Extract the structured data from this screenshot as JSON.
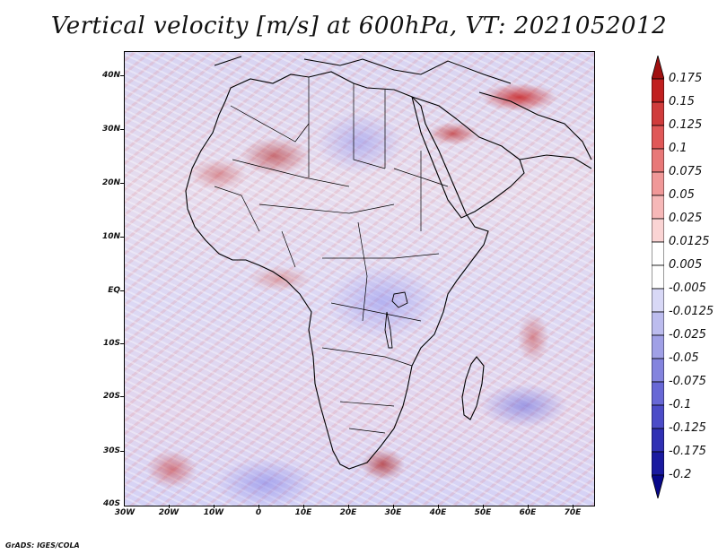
{
  "title": "Vertical velocity [m/s] at 600hPa, VT: 2021052012",
  "credit": "GrADS: IGES/COLA",
  "map": {
    "region": "Africa and Arabian Peninsula",
    "lat_labels": [
      "40N",
      "30N",
      "20N",
      "10N",
      "EQ",
      "10S",
      "20S",
      "30S",
      "40S"
    ],
    "lon_labels": [
      "30W",
      "20W",
      "10W",
      "0",
      "10E",
      "20E",
      "30E",
      "40E",
      "50E",
      "60E",
      "70E"
    ]
  },
  "colorbar": {
    "levels": [
      "0.175",
      "0.15",
      "0.125",
      "0.1",
      "0.075",
      "0.05",
      "0.025",
      "0.0125",
      "0.005",
      "-0.005",
      "-0.0125",
      "-0.025",
      "-0.05",
      "-0.075",
      "-0.1",
      "-0.125",
      "-0.175",
      "-0.2"
    ],
    "colors": [
      "#a01010",
      "#c02020",
      "#d03c3c",
      "#e05858",
      "#e87878",
      "#f09898",
      "#f6b8b8",
      "#fad4d4",
      "#ffffff",
      "#ffffff",
      "#d8d8f6",
      "#bcbcee",
      "#a0a0e6",
      "#8484de",
      "#6868d6",
      "#4c4cc8",
      "#3030b4",
      "#1a1aa0",
      "#08088a"
    ]
  }
}
